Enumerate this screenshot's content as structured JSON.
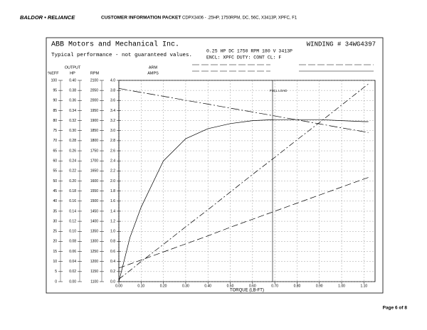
{
  "header": {
    "logo": "BALDOR • RELIANCE",
    "title": "CUSTOMER INFORMATION PACKET",
    "subtitle": "CDPX3406 - .25HP, 1750RPM, DC, 56C, X3413P, XPFC, F1"
  },
  "footer": {
    "page": "Page 6 of 8"
  },
  "chart_data": {
    "type": "line",
    "company": "ABB Motors and Mechanical Inc.",
    "note": "Typical performance - not guaranteed values.",
    "winding": "WINDING # 34WG4397",
    "spec_line1": "0.25 HP  DC  1750 RPM  180 V  3413P",
    "spec_line2": "ENCL: XPFC  DUTY: CONT  CL: F",
    "x_label": "TORQUE (LB-FT)",
    "full_load": {
      "label": "FULL LOAD",
      "x": 0.69
    },
    "grid": true,
    "xlim": [
      0,
      1.15
    ],
    "xticks": [
      {
        "value": 0,
        "label": "0.00"
      },
      {
        "value": 0.1,
        "label": "0.10"
      },
      {
        "value": 0.2,
        "label": "0.20"
      },
      {
        "value": 0.3,
        "label": "0.30"
      },
      {
        "value": 0.4,
        "label": "0.40"
      },
      {
        "value": 0.5,
        "label": "0.50"
      },
      {
        "value": 0.6,
        "label": "0.60"
      },
      {
        "value": 0.7,
        "label": "0.70"
      },
      {
        "value": 0.8,
        "label": "0.80"
      },
      {
        "value": 0.9,
        "label": "0.90"
      },
      {
        "value": 1.0,
        "label": "1.00"
      },
      {
        "value": 1.1,
        "label": "1.10"
      }
    ],
    "y_axes": [
      {
        "title": [
          "%EFF"
        ],
        "ylim": [
          0,
          100
        ],
        "yticks": [
          0,
          5,
          10,
          15,
          20,
          25,
          30,
          35,
          40,
          45,
          50,
          55,
          60,
          65,
          70,
          75,
          80,
          85,
          90,
          95,
          100
        ]
      },
      {
        "title": [
          "OUTPUT",
          "HP"
        ],
        "ylim": [
          0,
          0.4
        ],
        "yticks": [
          {
            "value": 0,
            "label": "0.00"
          },
          {
            "value": 0.02,
            "label": "0.02"
          },
          {
            "value": 0.04,
            "label": "0.04"
          },
          {
            "value": 0.06,
            "label": "0.06"
          },
          {
            "value": 0.08,
            "label": "0.08"
          },
          {
            "value": 0.1,
            "label": "0.10"
          },
          {
            "value": 0.12,
            "label": "0.12"
          },
          {
            "value": 0.14,
            "label": "0.14"
          },
          {
            "value": 0.16,
            "label": "0.16"
          },
          {
            "value": 0.18,
            "label": "0.18"
          },
          {
            "value": 0.2,
            "label": "0.20"
          },
          {
            "value": 0.22,
            "label": "0.22"
          },
          {
            "value": 0.24,
            "label": "0.24"
          },
          {
            "value": 0.26,
            "label": "0.26"
          },
          {
            "value": 0.28,
            "label": "0.28"
          },
          {
            "value": 0.3,
            "label": "0.30"
          },
          {
            "value": 0.32,
            "label": "0.32"
          },
          {
            "value": 0.34,
            "label": "0.34"
          },
          {
            "value": 0.36,
            "label": "0.36"
          },
          {
            "value": 0.38,
            "label": "0.38"
          },
          {
            "value": 0.4,
            "label": "0.40"
          }
        ]
      },
      {
        "title": [
          "RPM"
        ],
        "ylim": [
          1100,
          2100
        ],
        "yticks": [
          1100,
          1150,
          1200,
          1250,
          1300,
          1350,
          1400,
          1450,
          1500,
          1550,
          1600,
          1650,
          1700,
          1750,
          1800,
          1850,
          1900,
          1950,
          2000,
          2050,
          2100
        ]
      },
      {
        "title": [
          "ARM",
          "AMPS"
        ],
        "ylim": [
          0,
          4
        ],
        "yticks": [
          {
            "value": 0,
            "label": "0.0"
          },
          {
            "value": 0.2,
            "label": "0.2"
          },
          {
            "value": 0.4,
            "label": "0.4"
          },
          {
            "value": 0.6,
            "label": "0.6"
          },
          {
            "value": 0.8,
            "label": "0.8"
          },
          {
            "value": 1.0,
            "label": "1.0"
          },
          {
            "value": 1.2,
            "label": "1.2"
          },
          {
            "value": 1.4,
            "label": "1.4"
          },
          {
            "value": 1.6,
            "label": "1.6"
          },
          {
            "value": 1.8,
            "label": "1.8"
          },
          {
            "value": 2.0,
            "label": "2.0"
          },
          {
            "value": 2.2,
            "label": "2.2"
          },
          {
            "value": 2.4,
            "label": "2.4"
          },
          {
            "value": 2.6,
            "label": "2.6"
          },
          {
            "value": 2.8,
            "label": "2.8"
          },
          {
            "value": 3.0,
            "label": "3.0"
          },
          {
            "value": 3.2,
            "label": "3.2"
          },
          {
            "value": 3.4,
            "label": "3.4"
          },
          {
            "value": 3.6,
            "label": "3.6"
          },
          {
            "value": 3.8,
            "label": "3.8"
          },
          {
            "value": 4.0,
            "label": "4.0"
          }
        ]
      }
    ],
    "x": [
      0,
      0.05,
      0.1,
      0.2,
      0.3,
      0.4,
      0.5,
      0.6,
      0.7,
      0.8,
      0.9,
      1.0,
      1.1,
      1.12
    ],
    "series": [
      {
        "axis": 0,
        "color": "#000000",
        "style": "solid",
        "values": [
          0,
          22,
          37,
          60,
          71,
          76,
          78.5,
          80,
          80.5,
          80.5,
          80.5,
          80,
          79.5,
          79.5
        ]
      },
      {
        "axis": 1,
        "color": "#000000",
        "style": "long-dash",
        "values": [
          0.027,
          0.035,
          0.043,
          0.059,
          0.075,
          0.091,
          0.108,
          0.124,
          0.14,
          0.156,
          0.172,
          0.188,
          0.204,
          0.207
        ]
      },
      {
        "axis": 2,
        "color": "#000000",
        "style": "dash-dot-long",
        "values": [
          2060,
          2050,
          2040,
          2021,
          2001,
          1982,
          1962,
          1943,
          1923,
          1904,
          1884,
          1864,
          1845,
          1841
        ]
      },
      {
        "axis": 3,
        "color": "#000000",
        "style": "dash-dot",
        "values": [
          0.05,
          0.22,
          0.4,
          0.74,
          1.09,
          1.43,
          1.78,
          2.13,
          2.47,
          2.82,
          3.16,
          3.51,
          3.86,
          3.93
        ]
      }
    ]
  }
}
